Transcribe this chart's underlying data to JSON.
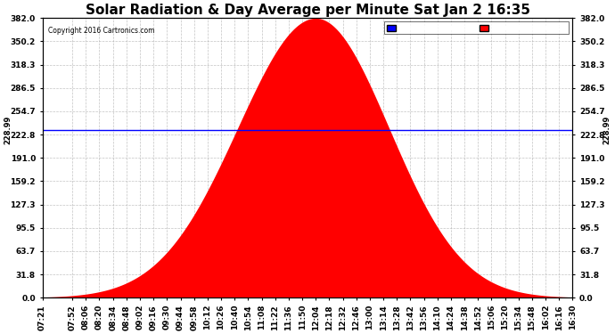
{
  "title": "Solar Radiation & Day Average per Minute Sat Jan 2 16:35",
  "copyright": "Copyright 2016 Cartronics.com",
  "median_value": 228.99,
  "y_max": 382.0,
  "y_ticks": [
    0.0,
    31.8,
    63.7,
    95.5,
    127.3,
    159.2,
    191.0,
    222.8,
    254.7,
    286.5,
    318.3,
    350.2,
    382.0
  ],
  "y_tick_labels": [
    "0.0",
    "31.8",
    "63.7",
    "95.5",
    "127.3",
    "159.2",
    "191.0",
    "222.8",
    "254.7",
    "286.5",
    "318.3",
    "350.2",
    "382.0"
  ],
  "x_ticks_labels": [
    "07:21",
    "07:52",
    "08:06",
    "08:20",
    "08:34",
    "08:48",
    "09:02",
    "09:16",
    "09:30",
    "09:44",
    "09:58",
    "10:12",
    "10:26",
    "10:40",
    "10:54",
    "11:08",
    "11:22",
    "11:36",
    "11:50",
    "12:04",
    "12:18",
    "12:32",
    "12:46",
    "13:00",
    "13:14",
    "13:28",
    "13:42",
    "13:56",
    "14:10",
    "14:24",
    "14:38",
    "14:52",
    "15:06",
    "15:20",
    "15:34",
    "15:48",
    "16:02",
    "16:16",
    "16:30"
  ],
  "peak_time": "12:04",
  "radiation_color": "#ff0000",
  "median_line_color": "#0000ff",
  "background_color": "#ffffff",
  "grid_color": "#aaaaaa",
  "legend_median_bg": "#0000ff",
  "legend_radiation_bg": "#ff0000",
  "title_fontsize": 11,
  "axis_fontsize": 6.5,
  "fig_bg": "#ffffff",
  "median_label": "228.99"
}
